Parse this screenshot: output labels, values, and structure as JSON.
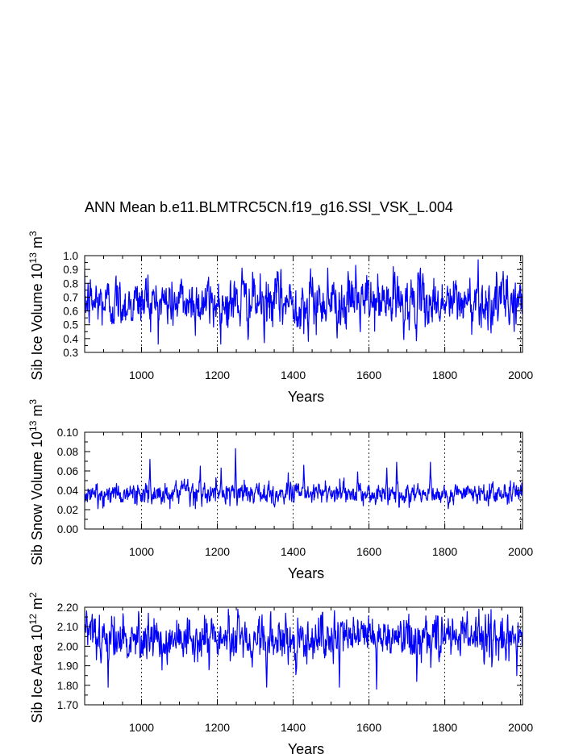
{
  "title": "ANN Mean b.e11.BLMTRC5CN.f19_g16.SSI_VSK_L.004",
  "line_color": "#0000ff",
  "chart_data": [
    {
      "type": "line",
      "title": "ANN Mean b.e11.BLMTRC5CN.f19_g16.SSI_VSK_L.004",
      "xlabel": "Years",
      "ylabel": "Sib Ice Volume 10",
      "ylabel_exp": "13",
      "ylabel_unit": " m",
      "ylabel_unit_exp": "3",
      "xlim": [
        850,
        2005
      ],
      "ylim": [
        0.3,
        1.0
      ],
      "xticks": [
        1000,
        1200,
        1400,
        1600,
        1800,
        2000
      ],
      "yticks": [
        "0.3",
        "0.4",
        "0.5",
        "0.6",
        "0.7",
        "0.8",
        "0.9",
        "1.0"
      ],
      "grid": "dashed vertical at x ticks",
      "series": [
        {
          "name": "Sib Ice Volume",
          "x_start": 850,
          "x_end": 2005,
          "mean": 0.66,
          "std": 0.09,
          "lo": 0.36,
          "hi": 0.97,
          "peaks": [
            [
              1017,
              0.86
            ],
            [
              1265,
              0.91
            ],
            [
              1324,
              0.37
            ],
            [
              1360,
              0.88
            ],
            [
              1440,
              0.38
            ],
            [
              1491,
              0.91
            ],
            [
              1565,
              0.93
            ],
            [
              1668,
              0.88
            ],
            [
              1888,
              0.97
            ],
            [
              1952,
              0.83
            ]
          ]
        }
      ]
    },
    {
      "type": "line",
      "xlabel": "Years",
      "ylabel": "Sib Snow Volume 10",
      "ylabel_exp": "13",
      "ylabel_unit": " m",
      "ylabel_unit_exp": "3",
      "xlim": [
        850,
        2005
      ],
      "ylim": [
        0.0,
        0.1
      ],
      "xticks": [
        1000,
        1200,
        1400,
        1600,
        1800,
        2000
      ],
      "yticks": [
        "0.00",
        "0.02",
        "0.04",
        "0.06",
        "0.08",
        "0.10"
      ],
      "grid": "dashed vertical at x ticks",
      "series": [
        {
          "name": "Sib Snow Volume",
          "x_start": 850,
          "x_end": 2005,
          "mean": 0.036,
          "std": 0.0055,
          "lo": 0.021,
          "hi": 0.083,
          "peaks": [
            [
              885,
              0.021
            ],
            [
              1022,
              0.072
            ],
            [
              1155,
              0.065
            ],
            [
              1210,
              0.063
            ],
            [
              1248,
              0.083
            ],
            [
              1387,
              0.058
            ],
            [
              1428,
              0.066
            ],
            [
              1570,
              0.059
            ],
            [
              1647,
              0.063
            ],
            [
              1673,
              0.069
            ],
            [
              1762,
              0.069
            ],
            [
              1828,
              0.046
            ],
            [
              1982,
              0.048
            ]
          ]
        }
      ]
    },
    {
      "type": "line",
      "xlabel": "Years",
      "ylabel": "Sib Ice Area 10",
      "ylabel_exp": "12",
      "ylabel_unit": " m",
      "ylabel_unit_exp": "2",
      "xlim": [
        850,
        2005
      ],
      "ylim": [
        1.7,
        2.2
      ],
      "xticks": [
        1000,
        1200,
        1400,
        1600,
        1800,
        2000
      ],
      "yticks": [
        "1.70",
        "1.80",
        "1.90",
        "2.00",
        "2.10",
        "2.20"
      ],
      "grid": "dashed vertical at x ticks",
      "series": [
        {
          "name": "Sib Ice Area",
          "x_start": 850,
          "x_end": 2005,
          "mean": 2.04,
          "std": 0.055,
          "lo": 1.78,
          "hi": 2.19,
          "peaks": [
            [
              912,
              1.79
            ],
            [
              1018,
              2.17
            ],
            [
              1330,
              1.79
            ],
            [
              1380,
              2.17
            ],
            [
              1522,
              1.79
            ],
            [
              1620,
              1.78
            ],
            [
              1726,
              1.82
            ],
            [
              1890,
              2.19
            ],
            [
              1990,
              1.85
            ]
          ]
        }
      ]
    }
  ]
}
